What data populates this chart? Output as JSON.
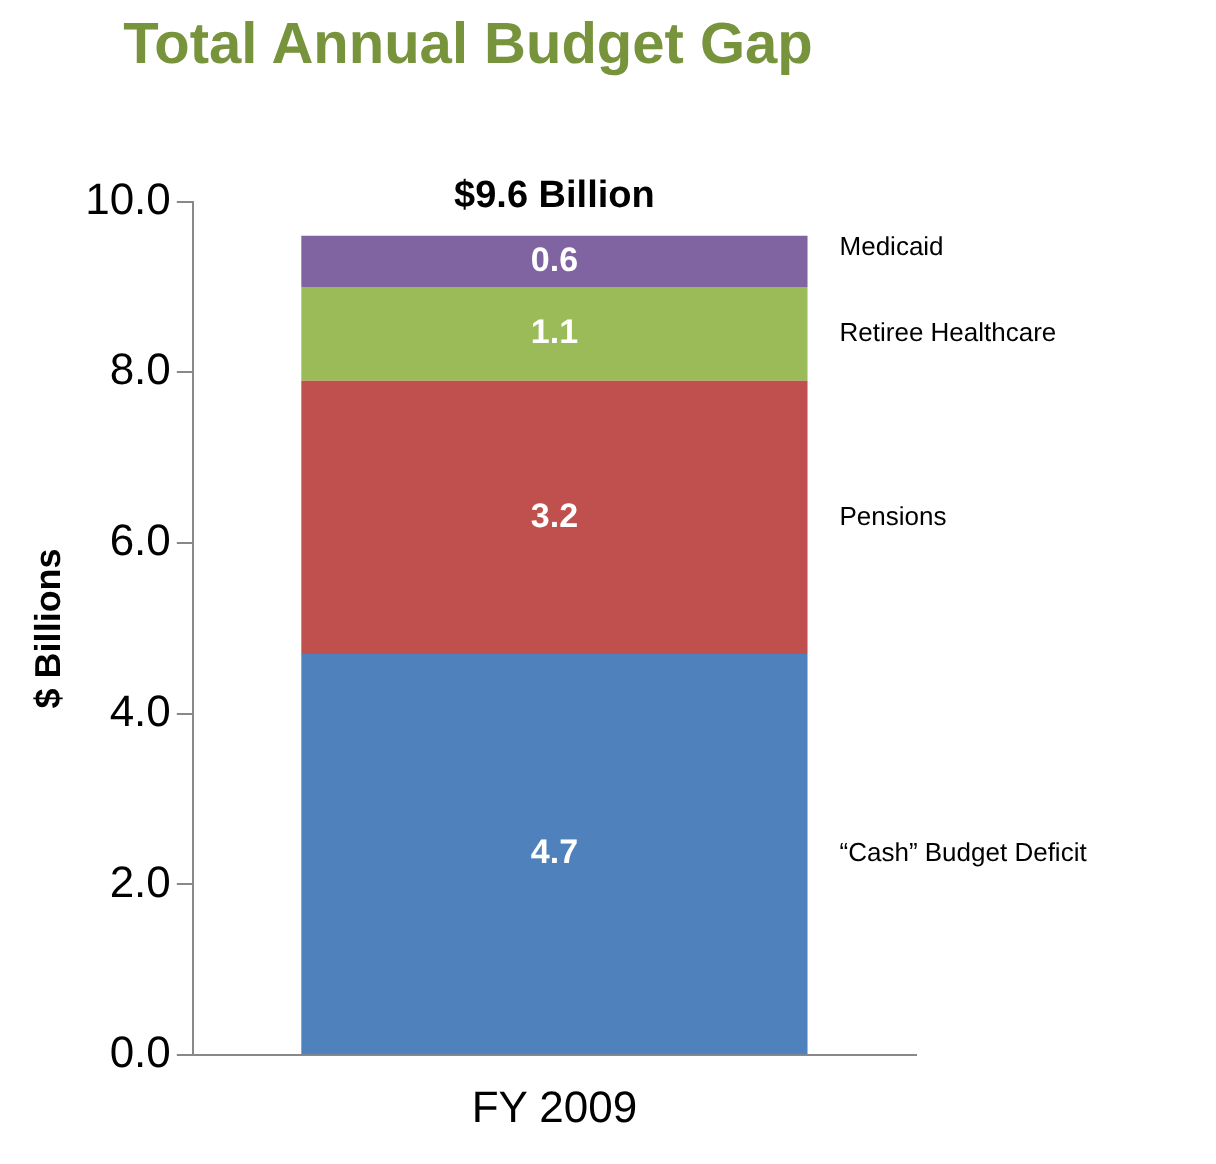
{
  "chart_data": {
    "type": "bar",
    "title": "Total Annual Budget Gap",
    "ylabel": "$ Billions",
    "categories": [
      "FY 2009"
    ],
    "stacked": true,
    "series": [
      {
        "name": "“Cash” Budget Deficit",
        "color": "#4f81bd",
        "values": [
          4.7
        ]
      },
      {
        "name": "Pensions",
        "color": "#c0504d",
        "values": [
          3.2
        ]
      },
      {
        "name": "Retiree Healthcare",
        "color": "#9bbb59",
        "values": [
          1.1
        ]
      },
      {
        "name": "Medicaid",
        "color": "#8064a2",
        "values": [
          0.6
        ]
      }
    ],
    "ylim": [
      0,
      10
    ],
    "yticks": [
      {
        "value": 0,
        "label": "0.0"
      },
      {
        "value": 2,
        "label": "2.0"
      },
      {
        "value": 4,
        "label": "4.0"
      },
      {
        "value": 6,
        "label": "6.0"
      },
      {
        "value": 8,
        "label": "8.0"
      },
      {
        "value": 10,
        "label": "10.0"
      }
    ],
    "grid": false,
    "legend": false,
    "data_labels": true,
    "totals": [
      "$9.6 Billion"
    ]
  }
}
